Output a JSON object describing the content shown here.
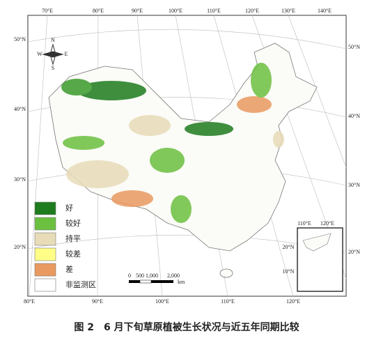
{
  "map": {
    "top_labels": [
      "70°E",
      "80°E",
      "90°E",
      "100°E",
      "110°E",
      "120°E",
      "130°E",
      "140°E"
    ],
    "left_labels": [
      "50°N",
      "40°N",
      "30°N",
      "20°N"
    ],
    "right_labels": [
      "50°N",
      "40°N",
      "30°N",
      "20°N"
    ],
    "bottom_labels": [
      "80°E",
      "90°E",
      "100°E",
      "110°E",
      "120°E"
    ],
    "compass": [
      "N",
      "E",
      "S",
      "W"
    ],
    "legend": [
      "好",
      "较好",
      "持平",
      "较差",
      "差",
      "非监测区"
    ],
    "scale": [
      "0",
      "500",
      "1,000",
      "2,000",
      "km"
    ],
    "inset_labels": [
      "110°E",
      "120°E",
      "20°N",
      "10°N"
    ]
  },
  "caption": "图 2　6 月下旬草原植被生长状况与近五年同期比较"
}
